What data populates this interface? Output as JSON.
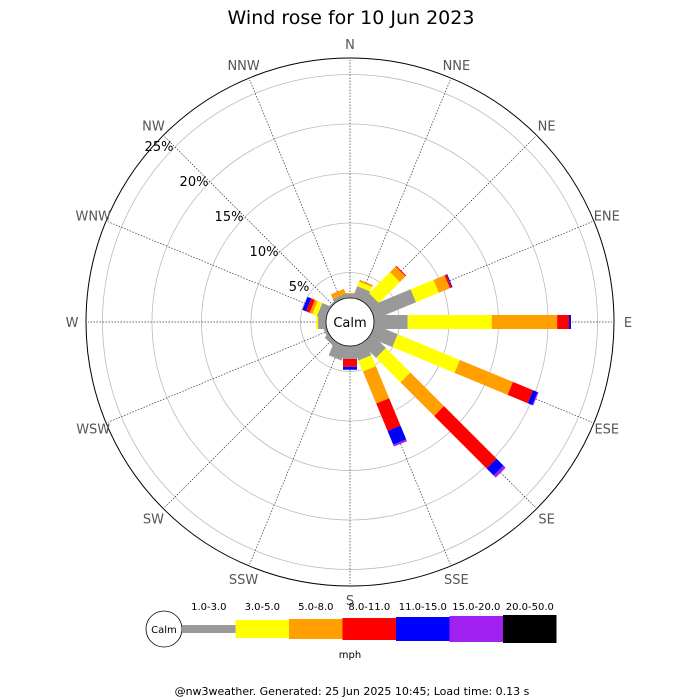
{
  "chart_data": {
    "type": "wind-rose",
    "title": "Wind rose for 10 Jun 2023",
    "directions": [
      "N",
      "NNE",
      "NE",
      "ENE",
      "E",
      "ESE",
      "SE",
      "SSE",
      "S",
      "SSW",
      "SW",
      "WSW",
      "W",
      "WNW",
      "NW",
      "NNW"
    ],
    "ring_labels": [
      "5%",
      "10%",
      "15%",
      "20%",
      "25%"
    ],
    "ring_values": [
      5,
      10,
      15,
      20,
      25
    ],
    "calm_label": "Calm",
    "unit": "mph",
    "speed_bins": [
      {
        "label": "1.0-3.0",
        "color": "#999999"
      },
      {
        "label": "3.0-5.0",
        "color": "#ffff00"
      },
      {
        "label": "5.0-8.0",
        "color": "#ff9f00"
      },
      {
        "label": "8.0-11.0",
        "color": "#ff0000"
      },
      {
        "label": "11.0-15.0",
        "color": "#0000ff"
      },
      {
        "label": "15.0-20.0",
        "color": "#a020f0"
      },
      {
        "label": "20.0-50.0",
        "color": "#000000"
      }
    ],
    "frequencies_percent": {
      "N": [
        0.4,
        0.0,
        0.1,
        0.0,
        0.0,
        0.0,
        0.0
      ],
      "NNE": [
        1.2,
        0.5,
        0.2,
        0.0,
        0.0,
        0.0,
        0.0
      ],
      "NE": [
        1.0,
        3.0,
        0.8,
        0.1,
        0.0,
        0.0,
        0.0
      ],
      "ENE": [
        4.5,
        2.5,
        1.2,
        0.2,
        0.1,
        0.0,
        0.0
      ],
      "E": [
        3.4,
        8.5,
        6.6,
        1.2,
        0.2,
        0.0,
        0.0
      ],
      "ESE": [
        2.5,
        6.8,
        5.8,
        2.2,
        0.5,
        0.1,
        0.0
      ],
      "SE": [
        2.0,
        3.5,
        4.8,
        7.5,
        1.0,
        0.3,
        0.0
      ],
      "SSE": [
        1.5,
        1.2,
        3.5,
        3.0,
        1.5,
        0.2,
        0.0
      ],
      "S": [
        1.3,
        0.0,
        0.0,
        0.8,
        0.3,
        0.0,
        0.0
      ],
      "SSW": [
        1.5,
        0.0,
        0.0,
        0.0,
        0.0,
        0.0,
        0.0
      ],
      "SW": [
        0.5,
        0.0,
        0.0,
        0.0,
        0.0,
        0.0,
        0.0
      ],
      "WSW": [
        0.3,
        0.0,
        0.0,
        0.0,
        0.0,
        0.0,
        0.0
      ],
      "W": [
        0.8,
        0.2,
        0.0,
        0.0,
        0.0,
        0.0,
        0.0
      ],
      "WNW": [
        0.9,
        0.5,
        0.3,
        0.4,
        0.4,
        0.0,
        0.0
      ],
      "NW": [
        0.2,
        0.0,
        0.0,
        0.0,
        0.0,
        0.0,
        0.0
      ],
      "NNW": [
        0.4,
        0.0,
        0.5,
        0.0,
        0.0,
        0.0,
        0.0
      ]
    }
  },
  "footer": "@nw3weather. Generated: 25 Jun 2025 10:45; Load time: 0.13 s"
}
